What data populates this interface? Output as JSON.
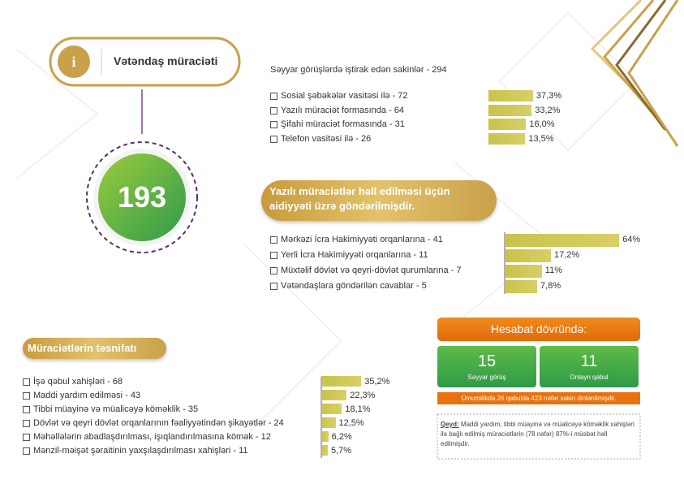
{
  "header": {
    "title": "Vətəndaş müraciəti"
  },
  "total": "193",
  "visits": {
    "title": "Səyyar görüşlərdə iştirak edən sakinlər - 294",
    "items": [
      {
        "label": "Sosial şəbəkələr vasitəsi ilə - 72",
        "value": 37.3,
        "value_label": "37,3%"
      },
      {
        "label": "Yazılı müraciət formasında - 64",
        "value": 33.2,
        "value_label": "33,2%"
      },
      {
        "label": "Şifahi müraciət formasında - 31",
        "value": 16.0,
        "value_label": "16,0%"
      },
      {
        "label": "Telefon vasitəsi ilə - 26",
        "value": 13.5,
        "value_label": "13,5%"
      }
    ]
  },
  "written": {
    "title": "Yazılı müraciətlər həll edilməsi üçün aidiyyəti üzrə göndərilmişdir.",
    "items": [
      {
        "label": "Mərkəzi İcra Hakimiyyəti orqanlarına - 41",
        "value": 64,
        "value_label": "64%"
      },
      {
        "label": "Yerli İcra Hakimiyyəti orqanlarına -  11",
        "value": 17.2,
        "value_label": "17,2%"
      },
      {
        "label": "Müxtəlif dövlət və qeyri-dövlət qurumlarına - 7",
        "value": 11,
        "value_label": "11%"
      },
      {
        "label": "Vətəndaşlara göndərilən cavablar - 5",
        "value": 7.8,
        "value_label": "7,8%"
      }
    ]
  },
  "classification": {
    "title": "Müraciətlərin təsnifatı",
    "items": [
      {
        "label": "İşə qəbul xahişləri - 68",
        "value": 35.2,
        "value_label": "35,2%"
      },
      {
        "label": "Maddi yardım edilməsi - 43",
        "value": 22.3,
        "value_label": "22,3%"
      },
      {
        "label": "Tibbi müayinə və müalicəyə köməklik - 35",
        "value": 18.1,
        "value_label": "18,1%"
      },
      {
        "label": "Dövlət və qeyri dövlət orqanlarının fəaliyyətindən şikayətlər - 24",
        "value": 12.5,
        "value_label": "12,5%"
      },
      {
        "label": "Məhəllələrin abadlaşdırılması, işıqlandırılmasına kömək - 12",
        "value": 6.2,
        "value_label": "6,2%"
      },
      {
        "label": "Mənzil-məişət şəraitinin yaxşılaşdırılması xahişləri - 11",
        "value": 5.7,
        "value_label": "5,7%"
      }
    ]
  },
  "report": {
    "title": "Hesabat dövründə:",
    "boxes": [
      {
        "value": "15",
        "label": "Səyyar görüş"
      },
      {
        "value": "11",
        "label": "Onlayn qəbul"
      }
    ],
    "summary": "Ümumilikdə 26 qəbulda 423 nəfər sakin dinlənilmişdir.",
    "note_label": "Qeyd:",
    "note": "Maddi yardım, tibbi müayinə və müalicəyə köməklik xahişləri ilə bağlı edilmiş müraciətlərin (78 nəfər) 87%-i müsbət həll edilmişdir."
  }
}
